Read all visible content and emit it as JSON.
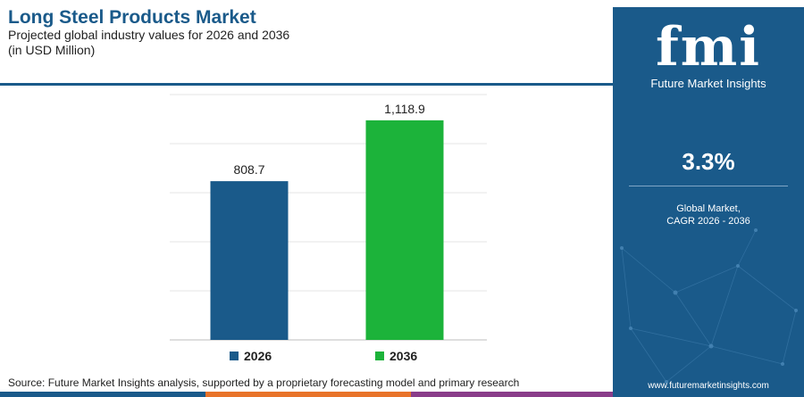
{
  "header": {
    "title": "Long Steel Products Market",
    "subtitle_line1": "Projected global industry values for 2026 and 2036",
    "subtitle_line2": "(in USD Million)"
  },
  "chart_data": {
    "type": "bar",
    "categories": [
      "2026",
      "2036"
    ],
    "values": [
      808.7,
      1118.9
    ],
    "value_labels": [
      "808.7",
      "1,118.9"
    ],
    "colors": [
      "#1a5a8a",
      "#1cb33a"
    ],
    "ylim": [
      0,
      1250
    ],
    "grid": true,
    "legend_position": "bottom",
    "xlabel": "",
    "ylabel": ""
  },
  "source": "Source: Future Market Insights analysis, supported by a proprietary forecasting model and primary research",
  "sidebar": {
    "logo_mark": "fmi",
    "logo_name": "Future Market Insights",
    "cagr_value": "3.3%",
    "cagr_label_line1": "Global Market,",
    "cagr_label_line2": "CAGR 2026 - 2036",
    "website": "www.futuremarketinsights.com",
    "background_color": "#1a5a8a"
  },
  "footer_colors": [
    "#1a5a8a",
    "#e8732a",
    "#8a3d8a",
    "#1cb33a"
  ]
}
